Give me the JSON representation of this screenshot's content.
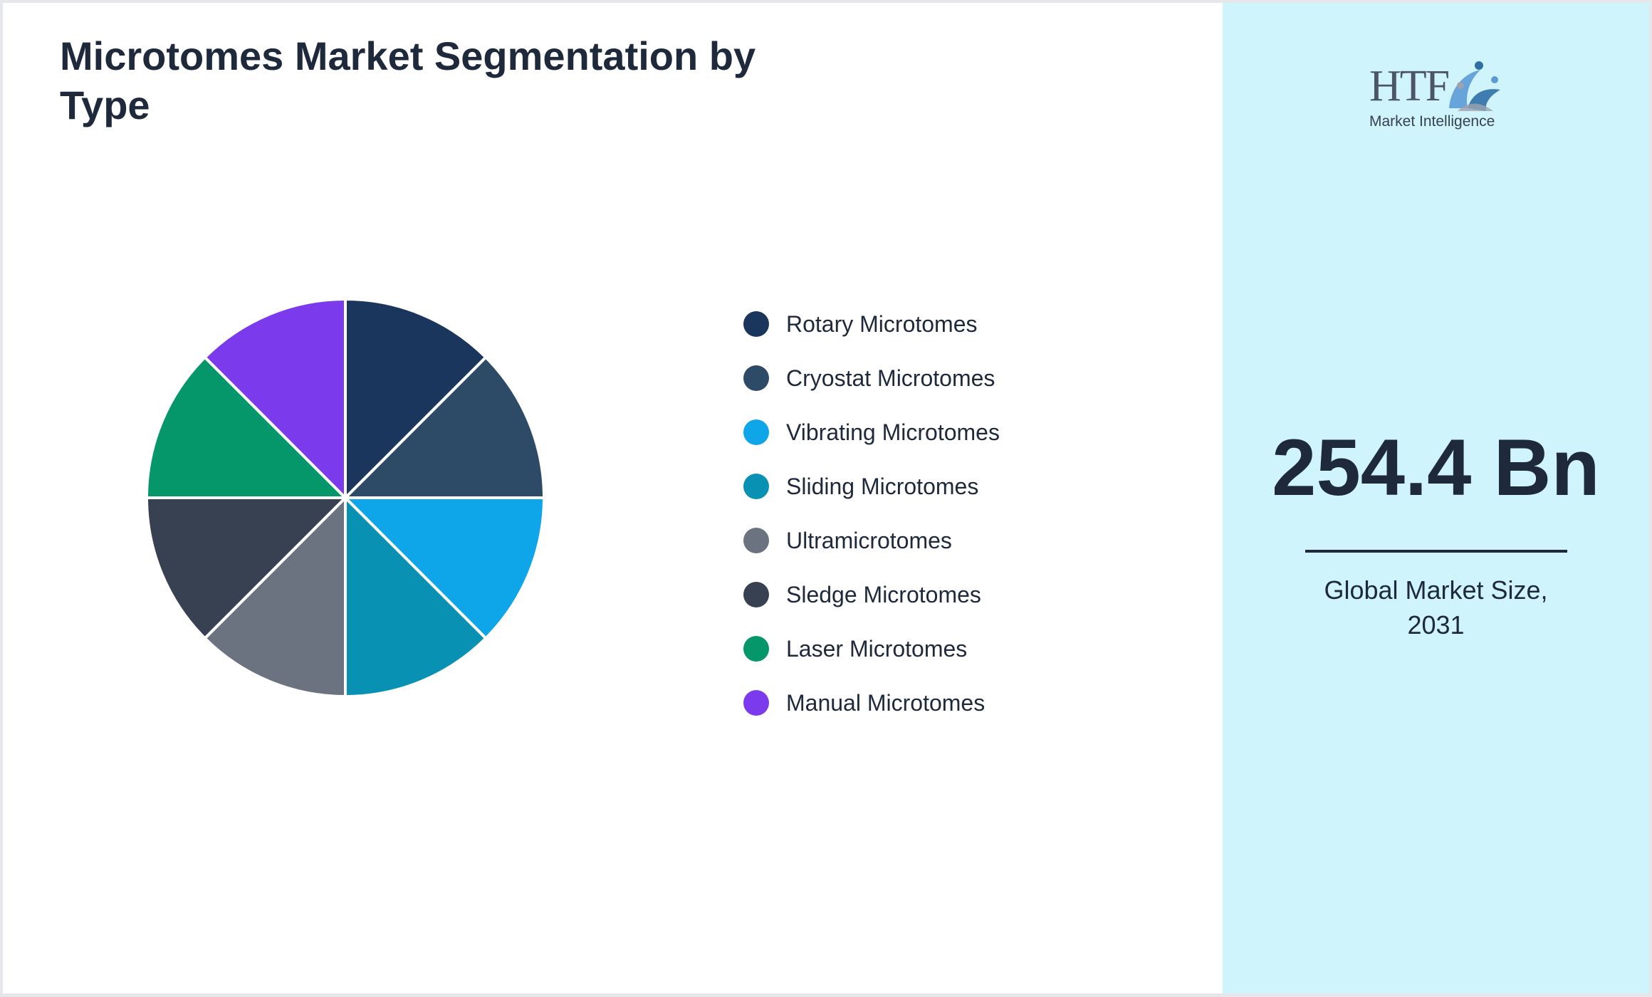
{
  "title": "Microtomes Market Segmentation by Type",
  "chart_data": {
    "type": "pie",
    "title": "Microtomes Market Segmentation by Type",
    "categories": [
      "Rotary Microtomes",
      "Cryostat Microtomes",
      "Vibrating Microtomes",
      "Sliding Microtomes",
      "Ultramicrotomes",
      "Sledge Microtomes",
      "Laser Microtomes",
      "Manual Microtomes"
    ],
    "values": [
      12.5,
      12.5,
      12.5,
      12.5,
      12.5,
      12.5,
      12.5,
      12.5
    ],
    "colors": [
      "#1b365d",
      "#2d4a66",
      "#0ea5e9",
      "#0891b2",
      "#6b7280",
      "#374151",
      "#059669",
      "#7c3aed"
    ],
    "legend_position": "right"
  },
  "kpi": {
    "value": "254.4 Bn",
    "caption_line1": "Global Market Size,",
    "caption_line2": "2031"
  },
  "logo": {
    "letters": "HTF",
    "subtitle": "Market Intelligence",
    "icon": "htf-figures-logo-icon"
  }
}
